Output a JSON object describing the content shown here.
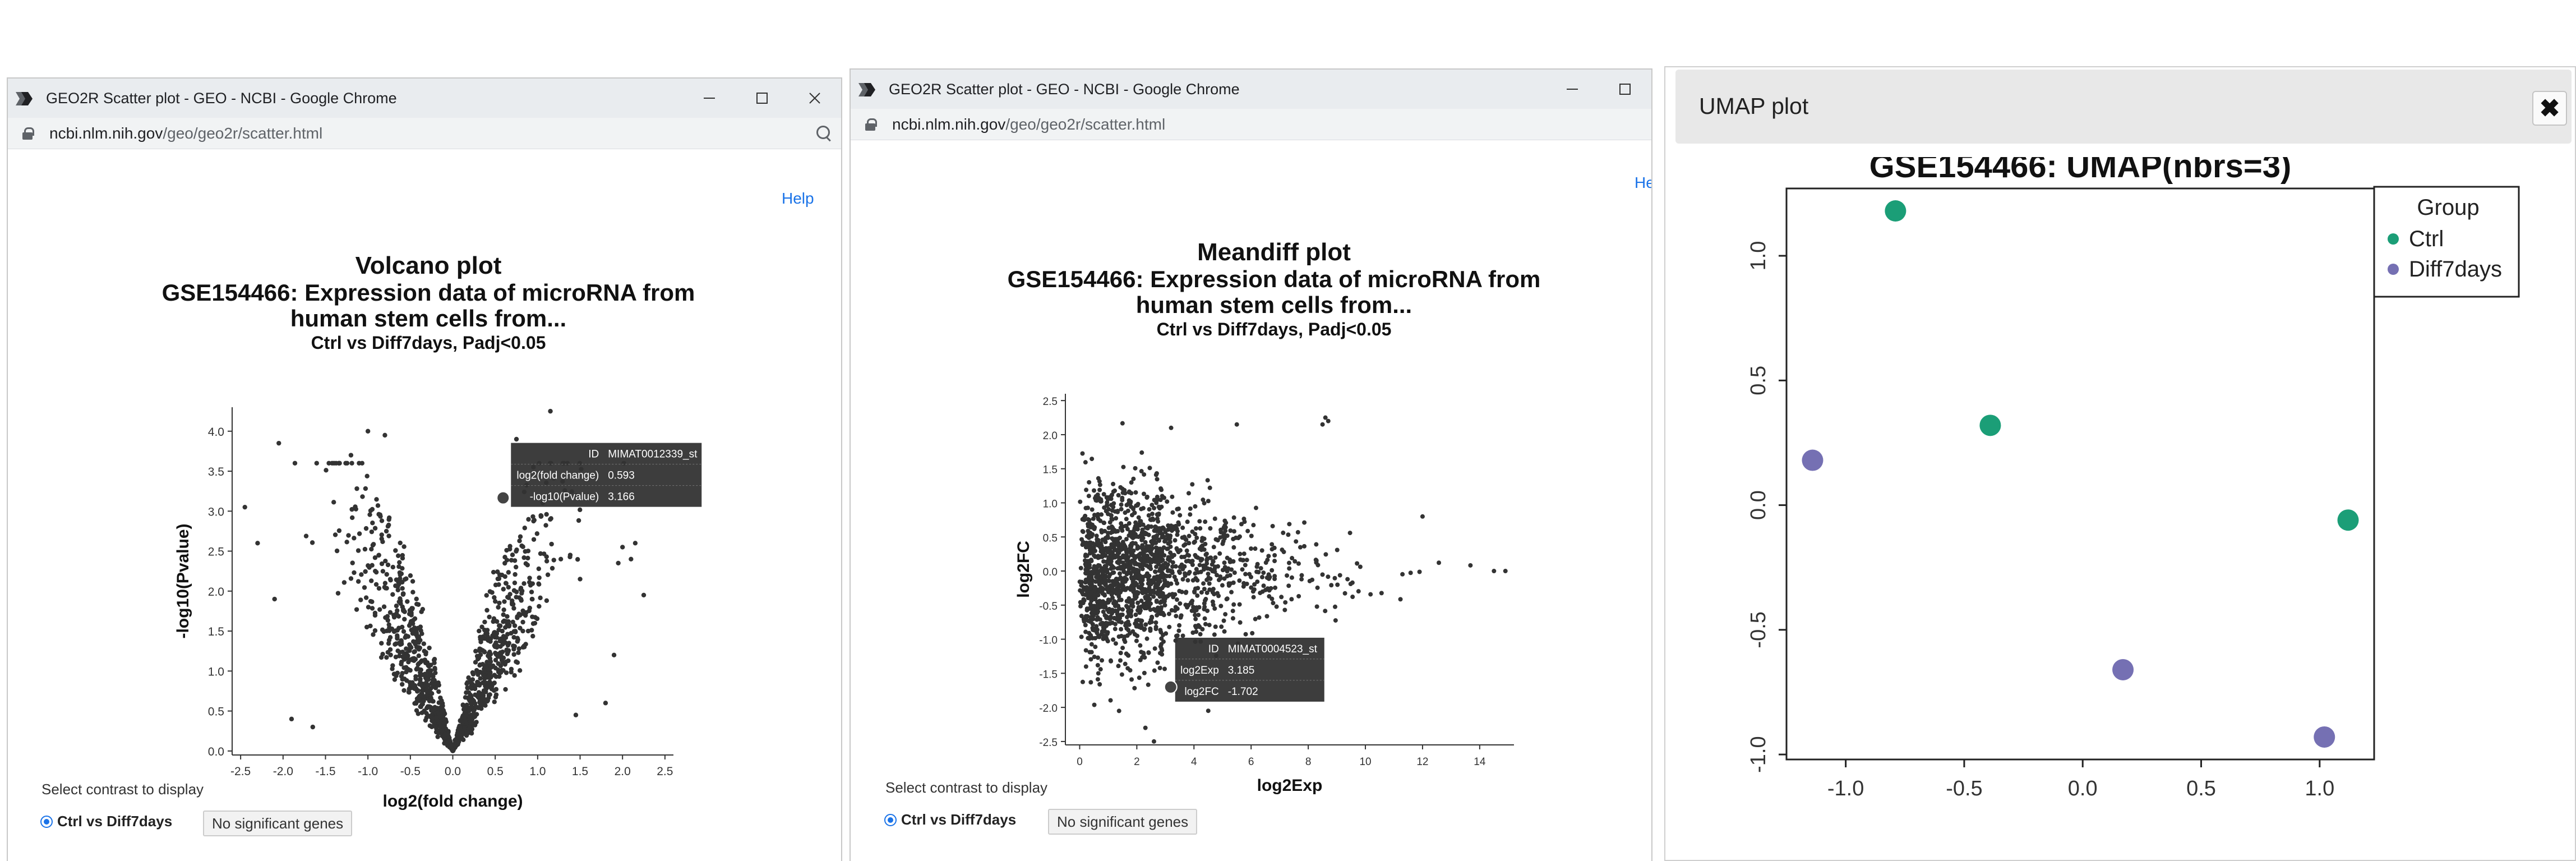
{
  "window_volcano": {
    "title": "GEO2R Scatter plot - GEO - NCBI - Google Chrome",
    "url_host": "ncbi.nlm.nih.gov",
    "url_path": "/geo/geo2r/scatter.html",
    "help_label": "Help",
    "select_label": "Select contrast to display",
    "radio_label": "Ctrl vs Diff7days",
    "sig_button": "No significant genes"
  },
  "window_meandiff": {
    "title": "GEO2R Scatter plot - GEO - NCBI - Google Chrome",
    "url_host": "ncbi.nlm.nih.gov",
    "url_path": "/geo/geo2r/scatter.html",
    "help_label": "He",
    "select_label": "Select contrast to display",
    "radio_label": "Ctrl vs Diff7days",
    "sig_button": "No significant genes"
  },
  "umap_panel": {
    "title": "UMAP plot",
    "close_icon": "close-icon"
  },
  "chart_data": [
    {
      "type": "scatter",
      "title": "Volcano plot",
      "subtitle_lines": [
        "GSE154466: Expression data of microRNA from",
        "human stem cells from..."
      ],
      "contrast_line": "Ctrl vs Diff7days, Padj<0.05",
      "xlabel": "log2(fold change)",
      "ylabel": "-log10(Pvalue)",
      "xlim": [
        -2.6,
        2.6
      ],
      "ylim": [
        -0.05,
        4.3
      ],
      "x_ticks": [
        "-2.5",
        "-2.0",
        "-1.5",
        "-1.0",
        "-0.5",
        "0.0",
        "0.5",
        "1.0",
        "1.5",
        "2.0",
        "2.5"
      ],
      "y_ticks": [
        "0.0",
        "0.5",
        "1.0",
        "1.5",
        "2.0",
        "2.5",
        "3.0",
        "3.5",
        "4.0"
      ],
      "point_color": "#333333",
      "tooltip": {
        "rows": [
          [
            "ID",
            "MIMAT0012339_st"
          ],
          [
            "log2(fold change)",
            "0.593"
          ],
          [
            "-log10(Pvalue)",
            "3.166"
          ]
        ],
        "point": [
          0.593,
          3.166
        ]
      },
      "outliers": [
        [
          -2.45,
          3.05
        ],
        [
          -2.3,
          2.6
        ],
        [
          -2.1,
          1.9
        ],
        [
          -1.65,
          0.3
        ],
        [
          -1.9,
          0.4
        ],
        [
          -2.05,
          3.85
        ],
        [
          -1.2,
          3.7
        ],
        [
          -1.0,
          4.0
        ],
        [
          -0.8,
          3.95
        ],
        [
          1.15,
          4.25
        ],
        [
          1.5,
          2.15
        ],
        [
          1.95,
          2.35
        ],
        [
          2.0,
          2.55
        ],
        [
          2.25,
          1.95
        ],
        [
          2.1,
          2.4
        ],
        [
          1.8,
          0.6
        ],
        [
          1.45,
          0.45
        ],
        [
          1.9,
          1.2
        ],
        [
          0.75,
          3.9
        ],
        [
          0.95,
          3.55
        ],
        [
          2.15,
          2.6
        ]
      ]
    },
    {
      "type": "scatter",
      "title": "Meandiff plot",
      "subtitle_lines": [
        "GSE154466: Expression data of microRNA from",
        "human stem cells from..."
      ],
      "contrast_line": "Ctrl vs Diff7days, Padj<0.05",
      "xlabel": "log2Exp",
      "ylabel": "log2FC",
      "xlim": [
        -0.5,
        15.2
      ],
      "ylim": [
        -2.55,
        2.6
      ],
      "x_ticks": [
        "0",
        "2",
        "4",
        "6",
        "8",
        "10",
        "12",
        "14"
      ],
      "y_ticks": [
        "-2.5",
        "-2.0",
        "-1.5",
        "-1.0",
        "-0.5",
        "0.0",
        "0.5",
        "1.0",
        "1.5",
        "2.0",
        "2.5"
      ],
      "point_color": "#333333",
      "tooltip": {
        "rows": [
          [
            "ID",
            "MIMAT0004523_st"
          ],
          [
            "log2Exp",
            "3.185"
          ],
          [
            "log2FC",
            "-1.702"
          ]
        ],
        "point": [
          3.185,
          -1.702
        ]
      },
      "outliers": [
        [
          8.5,
          2.15
        ],
        [
          8.7,
          2.2
        ],
        [
          8.6,
          2.25
        ],
        [
          5.5,
          2.15
        ],
        [
          3.2,
          2.1
        ],
        [
          2.6,
          -2.5
        ],
        [
          2.3,
          -2.3
        ],
        [
          4.5,
          -2.05
        ],
        [
          12.0,
          0.8
        ],
        [
          14.5,
          0.0
        ],
        [
          14.9,
          0.0
        ]
      ]
    },
    {
      "type": "scatter",
      "title": "GSE154466: UMAP(nbrs=3)",
      "xlabel": "",
      "ylabel": "",
      "xlim": [
        -1.25,
        1.23
      ],
      "ylim": [
        -1.02,
        1.27
      ],
      "x_ticks": [
        "-1.0",
        "-0.5",
        "0.0",
        "0.5",
        "1.0"
      ],
      "y_ticks": [
        "-1.0",
        "-0.5",
        "0.0",
        "0.5",
        "1.0"
      ],
      "legend_title": "Group",
      "legend_position": "top-right",
      "series": [
        {
          "name": "Ctrl",
          "color": "#1b9e77",
          "points": [
            [
              -0.79,
              1.18
            ],
            [
              -0.39,
              0.32
            ],
            [
              1.12,
              -0.06
            ]
          ]
        },
        {
          "name": "Diff7days",
          "color": "#7570b3",
          "points": [
            [
              -1.14,
              0.18
            ],
            [
              0.17,
              -0.66
            ],
            [
              1.02,
              -0.93
            ]
          ]
        }
      ]
    }
  ]
}
